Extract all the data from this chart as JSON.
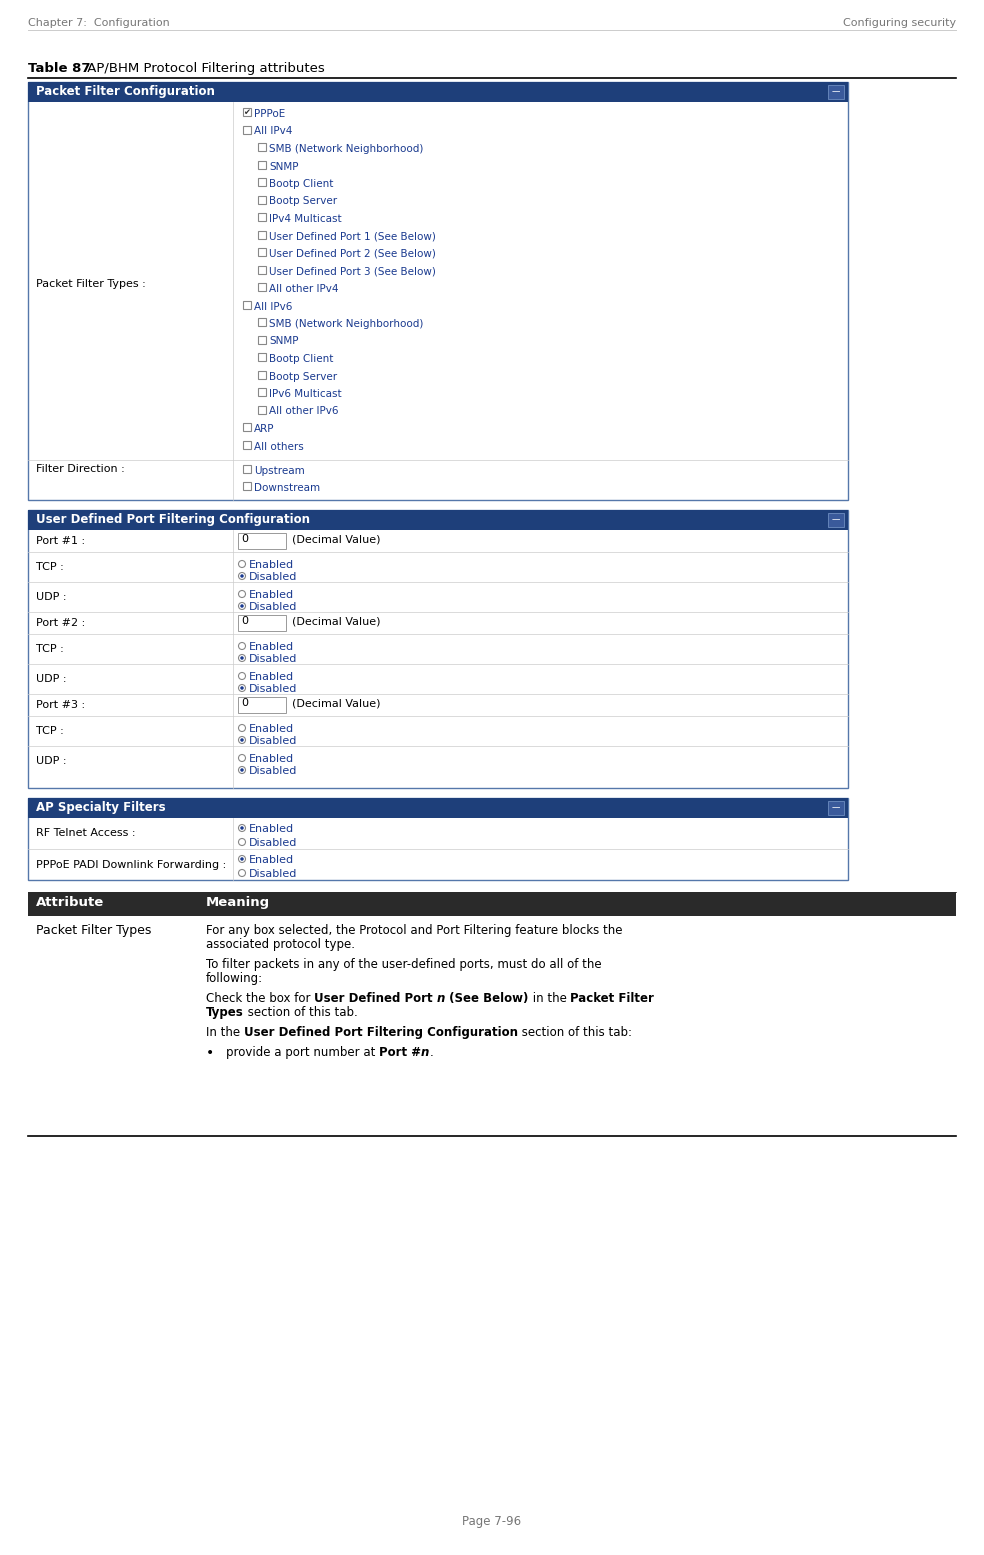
{
  "header_left": "Chapter 7:  Configuration",
  "header_right": "Configuring security",
  "footer": "Page 7-96",
  "table_title_bold": "Table 87",
  "table_title_rest": " AP/BHM Protocol Filtering attributes",
  "bg_color": "#ffffff",
  "header_bar_color": "#1e3f7a",
  "panel_border_color": "#5577aa",
  "blue_text_color": "#1a3a8f",
  "section1_title": "Packet Filter Configuration",
  "section1_left_label": "Packet Filter Types :",
  "section1_items": [
    {
      "text": "PPPoE",
      "indent": 0,
      "checked": true
    },
    {
      "text": "All IPv4",
      "indent": 0,
      "checked": false
    },
    {
      "text": "SMB (Network Neighborhood)",
      "indent": 1,
      "checked": false
    },
    {
      "text": "SNMP",
      "indent": 1,
      "checked": false
    },
    {
      "text": "Bootp Client",
      "indent": 1,
      "checked": false
    },
    {
      "text": "Bootp Server",
      "indent": 1,
      "checked": false
    },
    {
      "text": "IPv4 Multicast",
      "indent": 1,
      "checked": false
    },
    {
      "text": "User Defined Port 1 (See Below)",
      "indent": 1,
      "checked": false
    },
    {
      "text": "User Defined Port 2 (See Below)",
      "indent": 1,
      "checked": false
    },
    {
      "text": "User Defined Port 3 (See Below)",
      "indent": 1,
      "checked": false
    },
    {
      "text": "All other IPv4",
      "indent": 1,
      "checked": false
    },
    {
      "text": "All IPv6",
      "indent": 0,
      "checked": false
    },
    {
      "text": "SMB (Network Neighborhood)",
      "indent": 1,
      "checked": false
    },
    {
      "text": "SNMP",
      "indent": 1,
      "checked": false
    },
    {
      "text": "Bootp Client",
      "indent": 1,
      "checked": false
    },
    {
      "text": "Bootp Server",
      "indent": 1,
      "checked": false
    },
    {
      "text": "IPv6 Multicast",
      "indent": 1,
      "checked": false
    },
    {
      "text": "All other IPv6",
      "indent": 1,
      "checked": false
    },
    {
      "text": "ARP",
      "indent": 0,
      "checked": false
    },
    {
      "text": "All others",
      "indent": 0,
      "checked": false
    }
  ],
  "section1_filter_direction_label": "Filter Direction :",
  "section1_filter_items": [
    {
      "text": "Upstream",
      "checked": false
    },
    {
      "text": "Downstream",
      "checked": false
    }
  ],
  "section2_title": "User Defined Port Filtering Configuration",
  "section2_rows": [
    {
      "label": "Port #1 :",
      "type": "port",
      "value": "0"
    },
    {
      "label": "TCP :",
      "type": "radio",
      "value": "disabled"
    },
    {
      "label": "UDP :",
      "type": "radio",
      "value": "disabled"
    },
    {
      "label": "Port #2 :",
      "type": "port",
      "value": "0"
    },
    {
      "label": "TCP :",
      "type": "radio",
      "value": "disabled"
    },
    {
      "label": "UDP :",
      "type": "radio",
      "value": "disabled"
    },
    {
      "label": "Port #3 :",
      "type": "port",
      "value": "0"
    },
    {
      "label": "TCP :",
      "type": "radio",
      "value": "disabled"
    },
    {
      "label": "UDP :",
      "type": "radio",
      "value": "disabled"
    }
  ],
  "section3_title": "AP Specialty Filters",
  "section3_rows": [
    {
      "label": "RF Telnet Access :",
      "type": "radio",
      "value": "enabled"
    },
    {
      "label": "PPPoE PADI Downlink Forwarding :",
      "type": "radio",
      "value": "enabled"
    }
  ]
}
